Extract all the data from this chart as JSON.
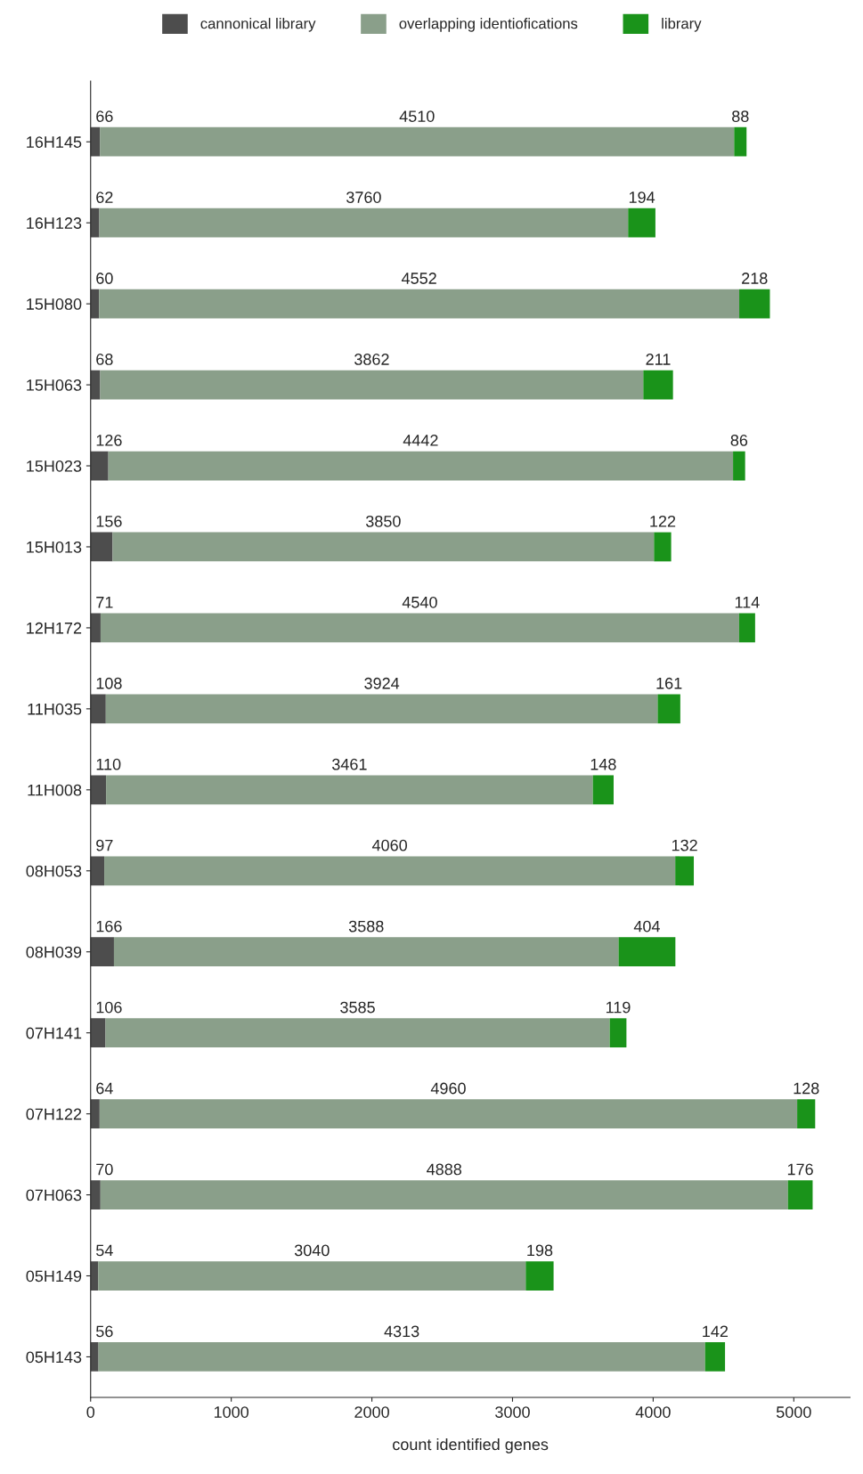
{
  "chart_data": {
    "type": "bar",
    "orientation": "horizontal",
    "stacked": true,
    "xlabel": "count identified genes",
    "categories": [
      "16H145",
      "16H123",
      "15H080",
      "15H063",
      "15H023",
      "15H013",
      "12H172",
      "11H035",
      "11H008",
      "08H053",
      "08H039",
      "07H141",
      "07H122",
      "07H063",
      "05H149",
      "05H143"
    ],
    "series": [
      {
        "name": "cannonical library",
        "color": "#4d4d4d",
        "values": [
          66,
          62,
          60,
          68,
          126,
          156,
          71,
          108,
          110,
          97,
          166,
          106,
          64,
          70,
          54,
          56
        ]
      },
      {
        "name": "overlapping identiofications",
        "color": "#8a9f8a",
        "values": [
          4510,
          3760,
          4552,
          3862,
          4442,
          3850,
          4540,
          3924,
          3461,
          4060,
          3588,
          3585,
          4960,
          4888,
          3040,
          4313
        ]
      },
      {
        "name": "library",
        "color": "#1a931a",
        "values": [
          88,
          194,
          218,
          211,
          86,
          122,
          114,
          161,
          148,
          132,
          404,
          119,
          128,
          176,
          198,
          142
        ]
      }
    ],
    "xlim": [
      0,
      5400
    ],
    "xticks": [
      0,
      1000,
      2000,
      3000,
      4000,
      5000
    ],
    "data_labels": true,
    "legend": "top",
    "grid": false
  }
}
